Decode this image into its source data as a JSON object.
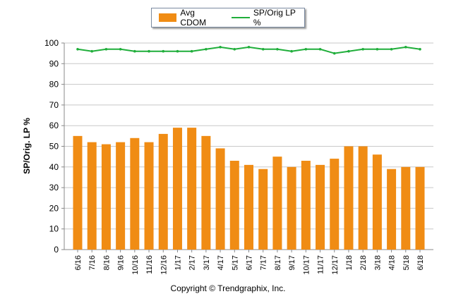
{
  "chart_data": {
    "type": "bar",
    "title": "",
    "xlabel": "",
    "ylabel": "SP/Orig. LP %",
    "ylim": [
      0,
      100
    ],
    "yticks": [
      0,
      10,
      20,
      30,
      40,
      50,
      60,
      70,
      80,
      90,
      100
    ],
    "grid": true,
    "legend_position": "top",
    "categories": [
      "6/16",
      "7/16",
      "8/16",
      "9/16",
      "10/16",
      "11/16",
      "12/16",
      "1/17",
      "2/17",
      "3/17",
      "4/17",
      "5/17",
      "6/17",
      "7/17",
      "8/17",
      "9/17",
      "10/17",
      "11/17",
      "12/17",
      "1/18",
      "2/18",
      "3/18",
      "4/18",
      "5/18",
      "6/18"
    ],
    "series": [
      {
        "name": "Avg CDOM",
        "type": "bar",
        "color": "#f08c14",
        "values": [
          55,
          52,
          51,
          52,
          54,
          52,
          56,
          59,
          59,
          55,
          49,
          43,
          41,
          39,
          45,
          40,
          43,
          41,
          44,
          50,
          50,
          46,
          39,
          40,
          40
        ]
      },
      {
        "name": "SP/Orig LP %",
        "type": "line",
        "color": "#1fae3a",
        "values": [
          97,
          96,
          97,
          97,
          96,
          96,
          96,
          96,
          96,
          97,
          98,
          97,
          98,
          97,
          97,
          96,
          97,
          97,
          95,
          96,
          97,
          97,
          97,
          98,
          97
        ]
      }
    ]
  },
  "footer": "Copyright © Trendgraphix, Inc."
}
